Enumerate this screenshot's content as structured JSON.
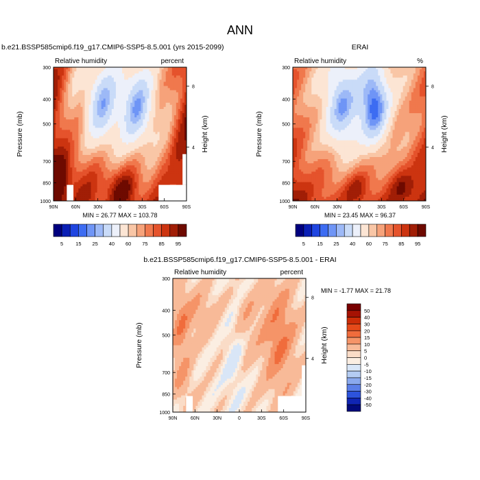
{
  "main_title": "ANN",
  "y_tick_labels": [
    "300",
    "400",
    "500",
    "700",
    "850",
    "1000"
  ],
  "x_tick_labels": [
    "90N",
    "60N",
    "30N",
    "0",
    "30S",
    "60S",
    "90S"
  ],
  "height_tick_labels": [
    "8",
    "4"
  ],
  "ylabel": "Pressure (mb)",
  "ylabel_right": "Height (km)",
  "chart_data": [
    {
      "type": "heatmap",
      "title": "b.e21.BSSP585cmip6.f19_g17.CMIP6-SSP5-8.5.001 (yrs 2015-2099)",
      "left_label": "Relative humidity",
      "right_label": "percent",
      "stats": "MIN = 26.77  MAX = 103.78",
      "xlabel": "",
      "ylabel": "Pressure (mb)",
      "ylabel_right": "Height (km)",
      "x_range": [
        "90N",
        "90S"
      ],
      "y_range": [
        1000,
        300
      ],
      "colorbar_labels": [
        "5",
        "15",
        "25",
        "40",
        "60",
        "75",
        "85",
        "95"
      ]
    },
    {
      "type": "heatmap",
      "title": "ERAI",
      "left_label": "Relative humidity",
      "right_label": "%",
      "stats": "MIN = 23.45  MAX = 96.37",
      "xlabel": "",
      "ylabel": "Pressure (mb)",
      "ylabel_right": "Height (km)",
      "x_range": [
        "90N",
        "90S"
      ],
      "y_range": [
        1000,
        300
      ],
      "colorbar_labels": [
        "5",
        "15",
        "25",
        "40",
        "60",
        "75",
        "85",
        "95"
      ]
    },
    {
      "type": "heatmap",
      "title": "b.e21.BSSP585cmip6.f19_g17.CMIP6-SSP5-8.5.001 - ERAI",
      "left_label": "Relative humidity",
      "right_label": "percent",
      "stats": "MIN = -1.77  MAX = 21.78",
      "xlabel": "",
      "ylabel": "Pressure (mb)",
      "ylabel_right": "Height (km)",
      "x_range": [
        "90N",
        "90S"
      ],
      "y_range": [
        1000,
        300
      ],
      "colorbar_labels": [
        "50",
        "40",
        "30",
        "20",
        "15",
        "10",
        "5",
        "0",
        "-5",
        "-10",
        "-15",
        "-20",
        "-30",
        "-40",
        "-50"
      ]
    }
  ],
  "colors": {
    "abs_scale": [
      "#00007f",
      "#0a1fb5",
      "#1f45e0",
      "#3d6cf2",
      "#6f95f6",
      "#9db9f7",
      "#c9dbf8",
      "#ecf0fa",
      "#fce5d4",
      "#f9c6a6",
      "#f6a27a",
      "#f0784d",
      "#e5532c",
      "#cc3410",
      "#a11e06",
      "#6e0a00"
    ],
    "diff_scale": [
      "#790000",
      "#a61203",
      "#cc2d08",
      "#e54a1a",
      "#f06c3c",
      "#f59468",
      "#f8ba98",
      "#fadcc7",
      "#fbeee2",
      "#d9e6f7",
      "#b4ccf3",
      "#8aa9ee",
      "#5b7fe8",
      "#2d53dc",
      "#1025b3",
      "#020a7c"
    ]
  }
}
